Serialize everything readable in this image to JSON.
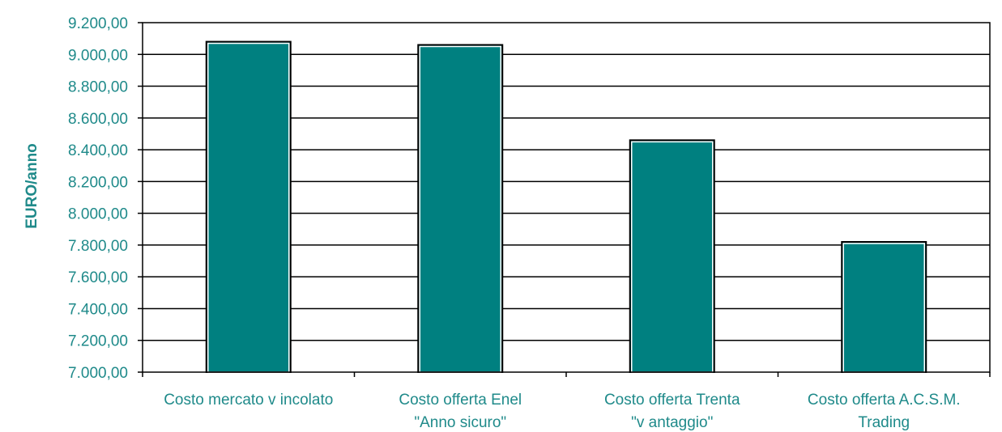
{
  "chart_data": {
    "type": "bar",
    "ylabel": "EURO/anno",
    "xlabel": "",
    "title": "",
    "ylim": [
      7000,
      9200
    ],
    "y_step": 200,
    "y_tick_labels": [
      "7.000,00",
      "7.200,00",
      "7.400,00",
      "7.600,00",
      "7.800,00",
      "8.000,00",
      "8.200,00",
      "8.400,00",
      "8.600,00",
      "8.800,00",
      "9.000,00",
      "9.200,00"
    ],
    "categories": [
      [
        "Costo mercato v incolato"
      ],
      [
        "Costo offerta Enel",
        "\"Anno sicuro\""
      ],
      [
        "Costo offerta Trenta",
        "\"v antaggio\""
      ],
      [
        "Costo offerta A.C.S.M.",
        "Trading"
      ]
    ],
    "values": [
      9080,
      9060,
      8460,
      7820
    ],
    "grid": true,
    "legend": "none",
    "colors": {
      "bar_fill": "#008080",
      "bar_stroke": "#000000",
      "text": "#1f8a8a",
      "axis": "#000000"
    }
  }
}
